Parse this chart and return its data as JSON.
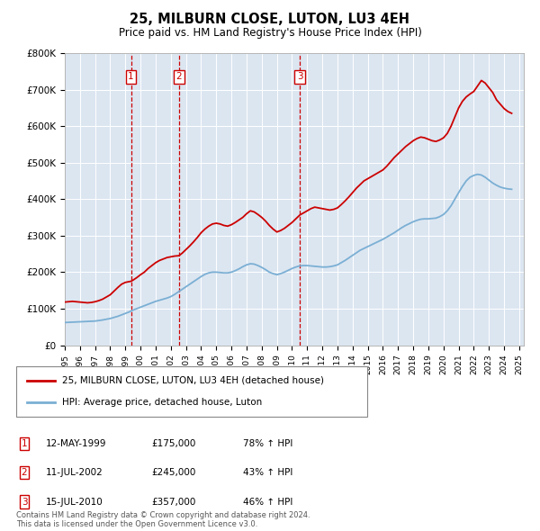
{
  "title": "25, MILBURN CLOSE, LUTON, LU3 4EH",
  "subtitle": "Price paid vs. HM Land Registry's House Price Index (HPI)",
  "legend_line1": "25, MILBURN CLOSE, LUTON, LU3 4EH (detached house)",
  "legend_line2": "HPI: Average price, detached house, Luton",
  "footer": "Contains HM Land Registry data © Crown copyright and database right 2024.\nThis data is licensed under the Open Government Licence v3.0.",
  "ylim": [
    0,
    800000
  ],
  "yticks": [
    0,
    100000,
    200000,
    300000,
    400000,
    500000,
    600000,
    700000,
    800000
  ],
  "ytick_labels": [
    "£0",
    "£100K",
    "£200K",
    "£300K",
    "£400K",
    "£500K",
    "£600K",
    "£700K",
    "£800K"
  ],
  "plot_bg_color": "#dce6f1",
  "sold_color": "#cc0000",
  "hpi_color": "#7bafd4",
  "transactions": [
    {
      "num": 1,
      "date": "12-MAY-1999",
      "price": 175000,
      "pct": "78%",
      "year": 1999.37
    },
    {
      "num": 2,
      "date": "11-JUL-2002",
      "price": 245000,
      "pct": "43%",
      "year": 2002.53
    },
    {
      "num": 3,
      "date": "15-JUL-2010",
      "price": 357000,
      "pct": "46%",
      "year": 2010.53
    }
  ],
  "sold_data": {
    "years": [
      1995.0,
      1995.25,
      1995.5,
      1995.75,
      1996.0,
      1996.25,
      1996.5,
      1996.75,
      1997.0,
      1997.25,
      1997.5,
      1997.75,
      1998.0,
      1998.25,
      1998.5,
      1998.75,
      1999.0,
      1999.25,
      1999.37,
      1999.5,
      1999.75,
      2000.0,
      2000.25,
      2000.5,
      2000.75,
      2001.0,
      2001.25,
      2001.5,
      2001.75,
      2002.0,
      2002.25,
      2002.53,
      2002.75,
      2003.0,
      2003.25,
      2003.5,
      2003.75,
      2004.0,
      2004.25,
      2004.5,
      2004.75,
      2005.0,
      2005.25,
      2005.5,
      2005.75,
      2006.0,
      2006.25,
      2006.5,
      2006.75,
      2007.0,
      2007.25,
      2007.5,
      2007.75,
      2008.0,
      2008.25,
      2008.5,
      2008.75,
      2009.0,
      2009.25,
      2009.5,
      2009.75,
      2010.0,
      2010.25,
      2010.53,
      2010.75,
      2011.0,
      2011.25,
      2011.5,
      2011.75,
      2012.0,
      2012.25,
      2012.5,
      2012.75,
      2013.0,
      2013.25,
      2013.5,
      2013.75,
      2014.0,
      2014.25,
      2014.5,
      2014.75,
      2015.0,
      2015.25,
      2015.5,
      2015.75,
      2016.0,
      2016.25,
      2016.5,
      2016.75,
      2017.0,
      2017.25,
      2017.5,
      2017.75,
      2018.0,
      2018.25,
      2018.5,
      2018.75,
      2019.0,
      2019.25,
      2019.5,
      2019.75,
      2020.0,
      2020.25,
      2020.5,
      2020.75,
      2021.0,
      2021.25,
      2021.5,
      2021.75,
      2022.0,
      2022.25,
      2022.5,
      2022.75,
      2023.0,
      2023.25,
      2023.5,
      2023.75,
      2024.0,
      2024.25,
      2024.5
    ],
    "values": [
      118000,
      119000,
      120000,
      119000,
      118000,
      117000,
      116000,
      117000,
      119000,
      122000,
      126000,
      132000,
      138000,
      148000,
      158000,
      167000,
      172000,
      174000,
      175000,
      178000,
      185000,
      193000,
      200000,
      210000,
      218000,
      226000,
      232000,
      236000,
      240000,
      242000,
      244000,
      245000,
      252000,
      262000,
      272000,
      283000,
      295000,
      308000,
      318000,
      326000,
      332000,
      334000,
      332000,
      328000,
      326000,
      330000,
      336000,
      343000,
      350000,
      360000,
      368000,
      365000,
      358000,
      350000,
      340000,
      328000,
      318000,
      310000,
      314000,
      320000,
      328000,
      336000,
      346000,
      357000,
      362000,
      368000,
      374000,
      378000,
      376000,
      374000,
      372000,
      370000,
      372000,
      376000,
      385000,
      395000,
      406000,
      418000,
      430000,
      440000,
      450000,
      456000,
      462000,
      468000,
      474000,
      480000,
      490000,
      502000,
      514000,
      524000,
      534000,
      544000,
      552000,
      560000,
      566000,
      570000,
      568000,
      564000,
      560000,
      558000,
      562000,
      568000,
      580000,
      600000,
      625000,
      650000,
      668000,
      680000,
      688000,
      695000,
      710000,
      725000,
      718000,
      705000,
      692000,
      672000,
      660000,
      648000,
      640000,
      635000
    ]
  },
  "hpi_data": {
    "years": [
      1995.0,
      1995.25,
      1995.5,
      1995.75,
      1996.0,
      1996.25,
      1996.5,
      1996.75,
      1997.0,
      1997.25,
      1997.5,
      1997.75,
      1998.0,
      1998.25,
      1998.5,
      1998.75,
      1999.0,
      1999.25,
      1999.5,
      1999.75,
      2000.0,
      2000.25,
      2000.5,
      2000.75,
      2001.0,
      2001.25,
      2001.5,
      2001.75,
      2002.0,
      2002.25,
      2002.5,
      2002.75,
      2003.0,
      2003.25,
      2003.5,
      2003.75,
      2004.0,
      2004.25,
      2004.5,
      2004.75,
      2005.0,
      2005.25,
      2005.5,
      2005.75,
      2006.0,
      2006.25,
      2006.5,
      2006.75,
      2007.0,
      2007.25,
      2007.5,
      2007.75,
      2008.0,
      2008.25,
      2008.5,
      2008.75,
      2009.0,
      2009.25,
      2009.5,
      2009.75,
      2010.0,
      2010.25,
      2010.5,
      2010.75,
      2011.0,
      2011.25,
      2011.5,
      2011.75,
      2012.0,
      2012.25,
      2012.5,
      2012.75,
      2013.0,
      2013.25,
      2013.5,
      2013.75,
      2014.0,
      2014.25,
      2014.5,
      2014.75,
      2015.0,
      2015.25,
      2015.5,
      2015.75,
      2016.0,
      2016.25,
      2016.5,
      2016.75,
      2017.0,
      2017.25,
      2017.5,
      2017.75,
      2018.0,
      2018.25,
      2018.5,
      2018.75,
      2019.0,
      2019.25,
      2019.5,
      2019.75,
      2020.0,
      2020.25,
      2020.5,
      2020.75,
      2021.0,
      2021.25,
      2021.5,
      2021.75,
      2022.0,
      2022.25,
      2022.5,
      2022.75,
      2023.0,
      2023.25,
      2023.5,
      2023.75,
      2024.0,
      2024.25,
      2024.5
    ],
    "values": [
      62000,
      62500,
      63000,
      63500,
      64000,
      64500,
      65000,
      65500,
      66000,
      67500,
      69000,
      71000,
      73000,
      76000,
      79000,
      83000,
      87000,
      91000,
      96000,
      100000,
      104000,
      108000,
      112000,
      116000,
      120000,
      123000,
      126000,
      129000,
      133000,
      139000,
      146000,
      153000,
      160000,
      167000,
      174000,
      181000,
      188000,
      194000,
      198000,
      200000,
      200000,
      199000,
      198000,
      198000,
      200000,
      204000,
      209000,
      215000,
      220000,
      223000,
      222000,
      218000,
      213000,
      207000,
      200000,
      196000,
      193000,
      196000,
      200000,
      205000,
      210000,
      214000,
      217000,
      218000,
      218000,
      217000,
      216000,
      215000,
      214000,
      214000,
      215000,
      217000,
      220000,
      226000,
      232000,
      239000,
      246000,
      253000,
      260000,
      265000,
      270000,
      275000,
      280000,
      285000,
      290000,
      296000,
      302000,
      308000,
      315000,
      322000,
      328000,
      333000,
      338000,
      342000,
      345000,
      346000,
      346000,
      347000,
      348000,
      352000,
      358000,
      368000,
      382000,
      400000,
      418000,
      435000,
      450000,
      460000,
      465000,
      468000,
      466000,
      460000,
      452000,
      444000,
      438000,
      433000,
      430000,
      428000,
      427000
    ]
  }
}
